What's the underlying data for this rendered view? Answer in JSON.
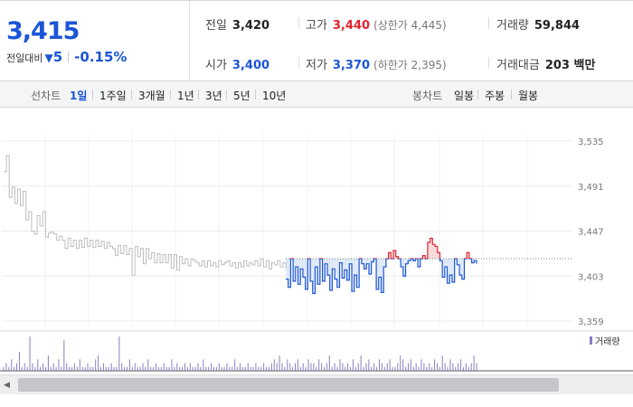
{
  "quote": {
    "price": "3,415",
    "change_label": "전일대비",
    "change_arrow": "▼",
    "change_value": "5",
    "change_percent": "-0.15%",
    "prev_close_label": "전일",
    "prev_close": "3,420",
    "high_label": "고가",
    "high": "3,440",
    "upper_limit": "(상한가 4,445)",
    "volume_label": "거래량",
    "volume": "59,844",
    "open_label": "시가",
    "open": "3,400",
    "low_label": "저가",
    "low": "3,370",
    "lower_limit": "(하한가 2,395)",
    "trade_value_label": "거래대금",
    "trade_value": "203 백만"
  },
  "period_bar": {
    "line_chart_label": "선차트",
    "line_tabs": [
      "1일",
      "1주일",
      "3개월",
      "1년",
      "3년",
      "5년",
      "10년"
    ],
    "active_tab": "1일",
    "candle_chart_label": "봉차트",
    "candle_tabs": [
      "일봉",
      "주봉",
      "월봉"
    ]
  },
  "colors": {
    "up": "#e0232e",
    "down": "#1b55d6",
    "history_line": "#bdbdbd",
    "baseline": "#555555",
    "volume": "#8a7fc2"
  },
  "chart_data": {
    "type": "line",
    "title": "",
    "ylabel": "",
    "y_ticks": [
      "3,535",
      "3,491",
      "3,447",
      "3,403",
      "3,359"
    ],
    "ylim": [
      3359,
      3535
    ],
    "baseline_prev_close": 3420,
    "series": [
      {
        "values": [
          3505,
          3521,
          3480,
          3490,
          3474,
          3488,
          3472,
          3486,
          3458,
          3466,
          3447,
          3444,
          3462,
          3452,
          3466,
          3441,
          3445,
          3446,
          3444,
          3438,
          3442,
          3438,
          3430,
          3440,
          3432,
          3438,
          3430,
          3438,
          3431,
          3440,
          3432,
          3438,
          3431,
          3438,
          3432,
          3437,
          3430,
          3436,
          3432,
          3430,
          3423,
          3433,
          3425,
          3433,
          3424,
          3430,
          3404,
          3432,
          3422,
          3430,
          3415,
          3430,
          3420,
          3426,
          3416,
          3425,
          3416,
          3424,
          3416,
          3424,
          3411,
          3424,
          3409,
          3422,
          3415,
          3420,
          3413,
          3420,
          3418,
          3416,
          3413,
          3418,
          3412,
          3418,
          3413,
          3416,
          3412,
          3418,
          3414,
          3416,
          3418,
          3413,
          3416,
          3411,
          3416,
          3412,
          3418,
          3413,
          3416,
          3414,
          3418,
          3413,
          3420,
          3412,
          3418,
          3410,
          3416,
          3414,
          3418,
          3412,
          3416,
          3410
        ]
      },
      {
        "values": [
          3400,
          3392,
          3420,
          3398,
          3412,
          3395,
          3410,
          3402,
          3390,
          3420,
          3398,
          3386,
          3412,
          3395,
          3420,
          3398,
          3415,
          3404,
          3389,
          3410,
          3400,
          3392,
          3416,
          3401,
          3409,
          3399,
          3415,
          3388,
          3404,
          3392,
          3420,
          3415,
          3410,
          3415,
          3405,
          3417,
          3420,
          3390,
          3402,
          3387,
          3412,
          3420,
          3426,
          3420,
          3428,
          3422,
          3420,
          3412,
          3403,
          3415,
          3418,
          3420,
          3418,
          3420,
          3412,
          3420,
          3423,
          3420,
          3436,
          3440,
          3434,
          3432,
          3426,
          3418,
          3402,
          3412,
          3396,
          3404,
          3397,
          3420,
          3414,
          3404,
          3400,
          3420,
          3426,
          3420,
          3416,
          3418,
          3415
        ]
      }
    ],
    "volume_legend": "거래량",
    "volume_values": [
      1,
      2,
      1,
      3,
      1,
      2,
      5,
      1,
      2,
      1,
      9,
      2,
      1,
      3,
      1,
      2,
      1,
      4,
      1,
      2,
      1,
      3,
      1,
      8,
      2,
      1,
      1,
      2,
      1,
      3,
      1,
      1,
      2,
      1,
      1,
      3,
      4,
      1,
      2,
      1,
      1,
      2,
      1,
      1,
      9,
      2,
      1,
      1,
      3,
      1,
      2,
      1,
      1,
      2,
      1,
      3,
      1,
      1,
      2,
      1,
      1,
      2,
      1,
      1,
      3,
      1,
      2,
      1,
      1,
      2,
      1,
      2,
      1,
      1,
      2,
      1,
      3,
      1,
      1,
      2,
      1,
      1,
      2,
      1,
      1,
      2,
      1,
      1,
      3,
      1,
      2,
      1,
      1,
      2,
      1,
      1,
      2,
      1,
      1,
      2,
      1,
      1,
      2,
      3,
      2,
      4,
      2,
      1,
      3,
      2,
      1,
      2,
      3,
      1,
      2,
      1,
      3,
      2,
      2,
      1,
      3,
      2,
      1,
      2,
      4,
      1,
      2,
      1,
      3,
      2,
      1,
      2,
      1,
      3,
      1,
      2,
      4,
      1,
      2,
      3,
      1,
      2,
      1,
      3,
      2,
      1,
      2,
      3,
      1,
      1,
      2,
      4,
      3,
      1,
      2,
      3,
      1,
      2,
      1,
      3,
      2,
      1,
      2,
      1,
      3,
      2,
      1,
      4,
      2,
      1,
      3,
      2,
      1,
      2,
      3,
      1,
      2,
      1,
      2,
      4,
      2
    ]
  }
}
